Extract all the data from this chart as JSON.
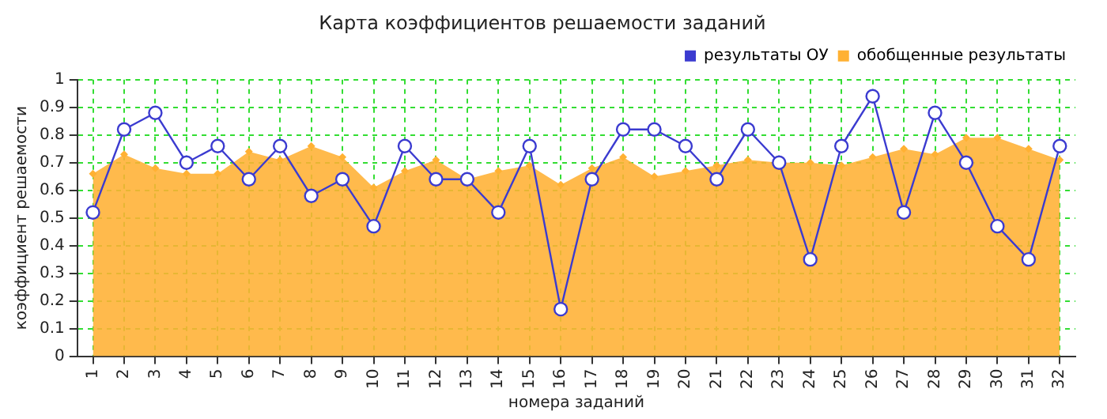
{
  "chart_data": {
    "type": "line",
    "title": "Карта коэффициентов решаемости заданий",
    "xlabel": "номера заданий",
    "ylabel": "коэффициент решаемости",
    "categories": [
      "1",
      "2",
      "3",
      "4",
      "5",
      "6",
      "7",
      "8",
      "9",
      "10",
      "11",
      "12",
      "13",
      "14",
      "15",
      "16",
      "17",
      "18",
      "19",
      "20",
      "21",
      "22",
      "23",
      "24",
      "25",
      "26",
      "27",
      "28",
      "29",
      "30",
      "31",
      "32"
    ],
    "series": [
      {
        "name": "результаты ОУ",
        "color": "#3b3bd0",
        "marker": "circle",
        "values": [
          0.52,
          0.82,
          0.88,
          0.7,
          0.76,
          0.64,
          0.76,
          0.58,
          0.64,
          0.47,
          0.76,
          0.64,
          0.64,
          0.52,
          0.76,
          0.17,
          0.64,
          0.82,
          0.82,
          0.76,
          0.64,
          0.82,
          0.7,
          0.35,
          0.76,
          0.94,
          0.52,
          0.88,
          0.7,
          0.47,
          0.35,
          0.76
        ]
      },
      {
        "name": "обобщенные результаты",
        "type": "area",
        "color": "#ffb133",
        "marker": "diamond",
        "values": [
          0.66,
          0.73,
          0.68,
          0.66,
          0.66,
          0.74,
          0.71,
          0.76,
          0.72,
          0.61,
          0.67,
          0.71,
          0.64,
          0.67,
          0.69,
          0.62,
          0.68,
          0.72,
          0.65,
          0.67,
          0.69,
          0.71,
          0.7,
          0.7,
          0.69,
          0.72,
          0.75,
          0.73,
          0.79,
          0.79,
          0.75,
          0.71
        ]
      }
    ],
    "ylim": [
      0,
      1
    ],
    "yticks": [
      0,
      0.1,
      0.2,
      0.3,
      0.4,
      0.5,
      0.6,
      0.7,
      0.8,
      0.9,
      1
    ],
    "grid": true,
    "legend": "top right"
  }
}
